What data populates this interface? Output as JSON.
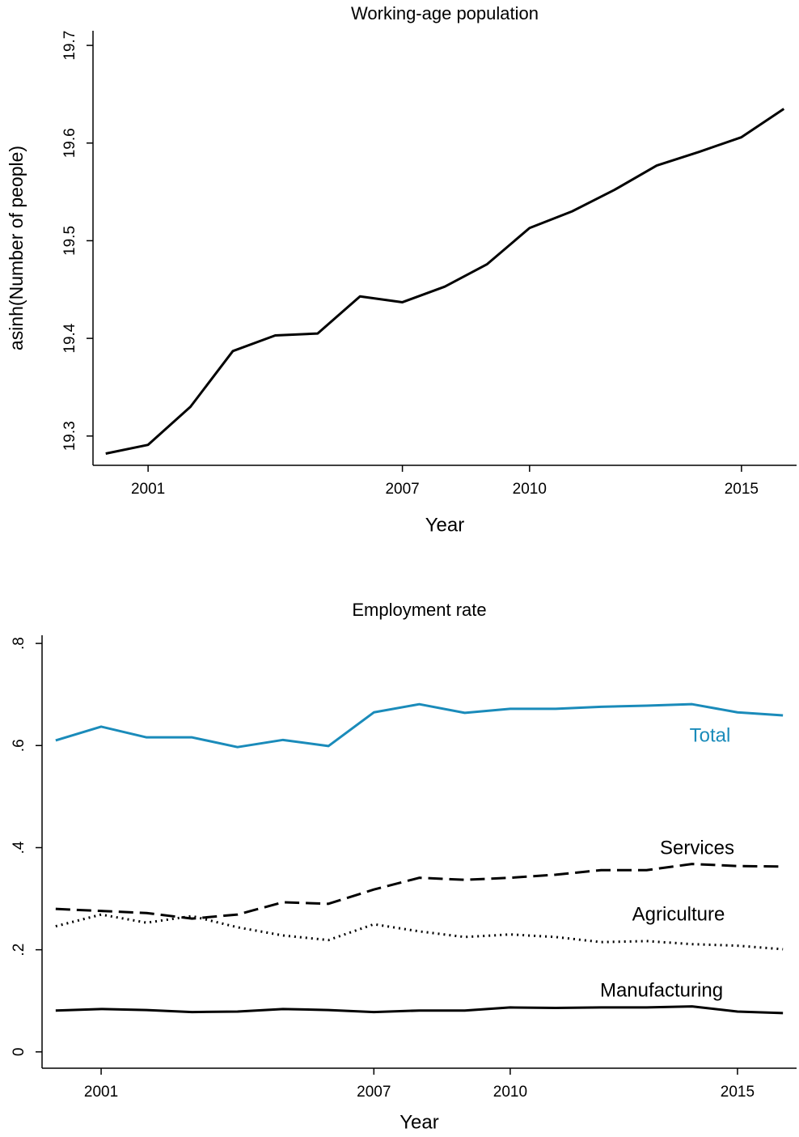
{
  "chart_data": [
    {
      "type": "line",
      "title": "Working-age population",
      "x_label": "Year",
      "y_label": "asinh(Number of people)",
      "x": [
        2000,
        2001,
        2002,
        2003,
        2004,
        2005,
        2006,
        2007,
        2008,
        2009,
        2010,
        2011,
        2012,
        2013,
        2014,
        2015,
        2016
      ],
      "series": [
        {
          "name": null,
          "color": "#000000",
          "dash": "solid",
          "values": [
            19.282,
            19.291,
            19.33,
            19.387,
            19.403,
            19.405,
            19.443,
            19.437,
            19.453,
            19.476,
            19.513,
            19.53,
            19.552,
            19.577,
            19.591,
            19.606,
            19.635
          ]
        }
      ],
      "xlim": [
        1999.7,
        2016.3
      ],
      "xticks": [
        2001,
        2007,
        2010,
        2015
      ],
      "ylim": [
        19.27,
        19.715
      ],
      "yticks": [
        19.3,
        19.4,
        19.5,
        19.6,
        19.7
      ],
      "grid": false
    },
    {
      "type": "line",
      "title": "Employment rate",
      "x_label": "Year",
      "x": [
        2000,
        2001,
        2002,
        2003,
        2004,
        2005,
        2006,
        2007,
        2008,
        2009,
        2010,
        2011,
        2012,
        2013,
        2014,
        2015,
        2016
      ],
      "series": [
        {
          "name": "Total",
          "color": "#1a8bba",
          "dash": "solid",
          "values": [
            0.61,
            0.637,
            0.616,
            0.616,
            0.597,
            0.611,
            0.599,
            0.665,
            0.681,
            0.664,
            0.672,
            0.672,
            0.676,
            0.678,
            0.681,
            0.665,
            0.659
          ]
        },
        {
          "name": "Services",
          "color": "#000000",
          "dash": "dashed",
          "values": [
            0.28,
            0.276,
            0.272,
            0.261,
            0.269,
            0.293,
            0.29,
            0.318,
            0.341,
            0.337,
            0.341,
            0.347,
            0.356,
            0.356,
            0.368,
            0.364,
            0.363
          ]
        },
        {
          "name": "Agriculture",
          "color": "#000000",
          "dash": "dotted",
          "values": [
            0.246,
            0.269,
            0.253,
            0.266,
            0.244,
            0.228,
            0.219,
            0.25,
            0.236,
            0.225,
            0.23,
            0.225,
            0.215,
            0.217,
            0.211,
            0.208,
            0.201
          ]
        },
        {
          "name": "Manufacturing",
          "color": "#000000",
          "dash": "solid",
          "values": [
            0.081,
            0.084,
            0.082,
            0.078,
            0.079,
            0.084,
            0.082,
            0.078,
            0.081,
            0.081,
            0.087,
            0.086,
            0.087,
            0.087,
            0.089,
            0.079,
            0.076
          ]
        }
      ],
      "xlim": [
        1999.7,
        2016.3
      ],
      "xticks": [
        2001,
        2007,
        2010,
        2015
      ],
      "ylim": [
        -0.032,
        0.816
      ],
      "yticks": [
        {
          "value": 0,
          "label": "0"
        },
        {
          "value": 0.2,
          "label": ".2"
        },
        {
          "value": 0.4,
          "label": ".4"
        },
        {
          "value": 0.6,
          "label": ".6"
        },
        {
          "value": 0.8,
          "label": ".8"
        }
      ],
      "grid": false
    }
  ]
}
